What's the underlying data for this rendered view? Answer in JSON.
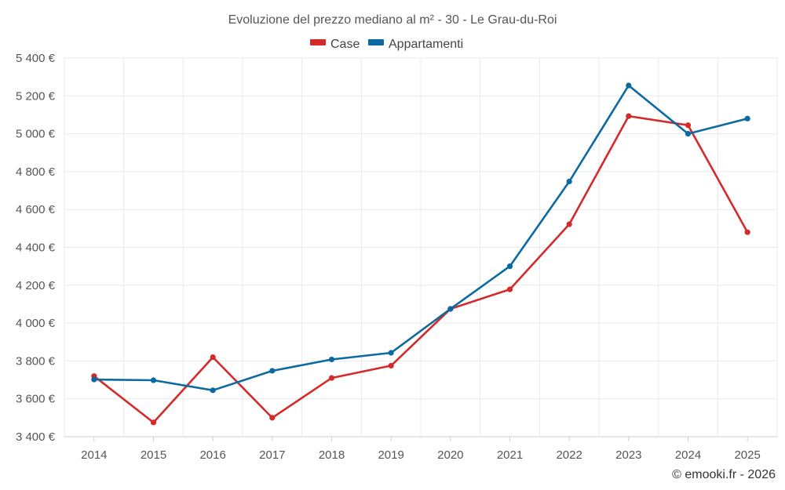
{
  "chart_data": {
    "type": "line",
    "title": "Evoluzione del prezzo mediano al m² - 30 - Le Grau-du-Roi",
    "categories": [
      "2014",
      "2015",
      "2016",
      "2017",
      "2018",
      "2019",
      "2020",
      "2021",
      "2022",
      "2023",
      "2024",
      "2025"
    ],
    "series": [
      {
        "name": "Case",
        "color": "#d42a2a",
        "values": [
          3720,
          3475,
          3820,
          3500,
          3710,
          3775,
          4075,
          4178,
          4522,
          5093,
          5045,
          4480
        ]
      },
      {
        "name": "Appartamenti",
        "color": "#0a6aa1",
        "values": [
          3702,
          3698,
          3645,
          3748,
          3808,
          3843,
          4075,
          4300,
          4748,
          5255,
          5000,
          5080
        ]
      }
    ],
    "ylim": [
      3400,
      5400
    ],
    "yticks": [
      3400,
      3600,
      3800,
      4000,
      4200,
      4400,
      4600,
      4800,
      5000,
      5200,
      5400
    ],
    "ytick_labels": [
      "3 400 €",
      "3 600 €",
      "3 800 €",
      "4 000 €",
      "4 200 €",
      "4 400 €",
      "4 600 €",
      "4 800 €",
      "5 000 €",
      "5 200 €",
      "5 400 €"
    ],
    "xlabel": "",
    "ylabel": "",
    "grid": true,
    "legend_position": "top-center"
  },
  "credit": "© emooki.fr - 2026"
}
